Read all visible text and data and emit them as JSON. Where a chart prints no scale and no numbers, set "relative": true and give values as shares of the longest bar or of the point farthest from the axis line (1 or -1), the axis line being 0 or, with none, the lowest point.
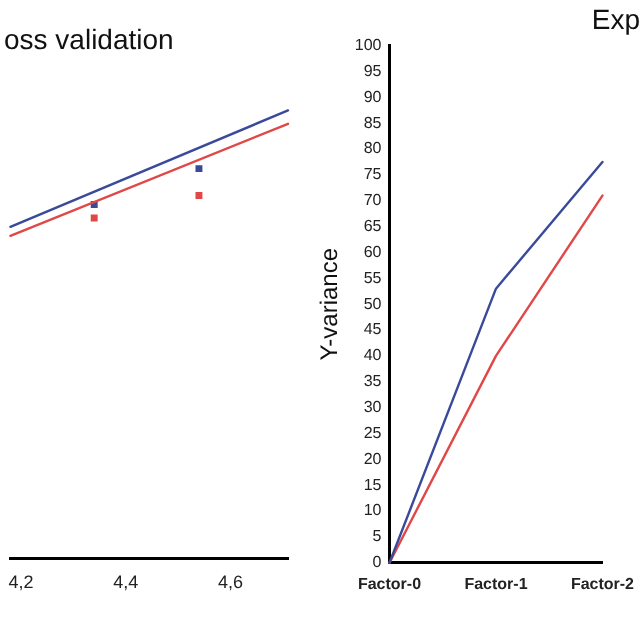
{
  "chart_data": [
    {
      "type": "line",
      "title": "oss validation",
      "relative": true,
      "xlim": [
        4.18,
        4.71
      ],
      "xticks": [
        {
          "value": 4.2,
          "label": "4,2"
        },
        {
          "value": 4.4,
          "label": "4,4"
        },
        {
          "value": 4.6,
          "label": "4,6"
        }
      ],
      "tick_labels": "x",
      "legend": false,
      "grid": false,
      "series": [
        {
          "type": "line",
          "marker": "none",
          "color": "#3a4a9a",
          "x": [
            4.18,
            4.71
          ],
          "values": [
            0.74,
            1
          ]
        },
        {
          "type": "line",
          "marker": "none",
          "color": "#e04848",
          "x": [
            4.18,
            4.71
          ],
          "values": [
            0.72,
            0.97
          ]
        },
        {
          "type": "scatter",
          "marker": "square",
          "color": "#3a4a9a",
          "x": [
            4.34,
            4.54
          ],
          "values": [
            0.79,
            0.87
          ]
        },
        {
          "type": "scatter",
          "marker": "square",
          "color": "#e04848",
          "x": [
            4.34,
            4.54
          ],
          "values": [
            0.76,
            0.81
          ]
        }
      ]
    },
    {
      "type": "line",
      "title": "Exp",
      "ylabel": "Y-variance",
      "categories": [
        "Factor-0",
        "Factor-1",
        "Factor-2"
      ],
      "ylim": [
        0,
        100
      ],
      "yticks": [
        0,
        5,
        10,
        15,
        20,
        25,
        30,
        35,
        40,
        45,
        50,
        55,
        60,
        65,
        70,
        75,
        80,
        85,
        90,
        95,
        100
      ],
      "legend": false,
      "grid": false,
      "marker": "none",
      "series": [
        {
          "color": "#3a4a9a",
          "values": [
            0,
            53,
            77.5
          ]
        },
        {
          "color": "#e04848",
          "values": [
            0,
            40,
            71
          ]
        }
      ]
    }
  ]
}
